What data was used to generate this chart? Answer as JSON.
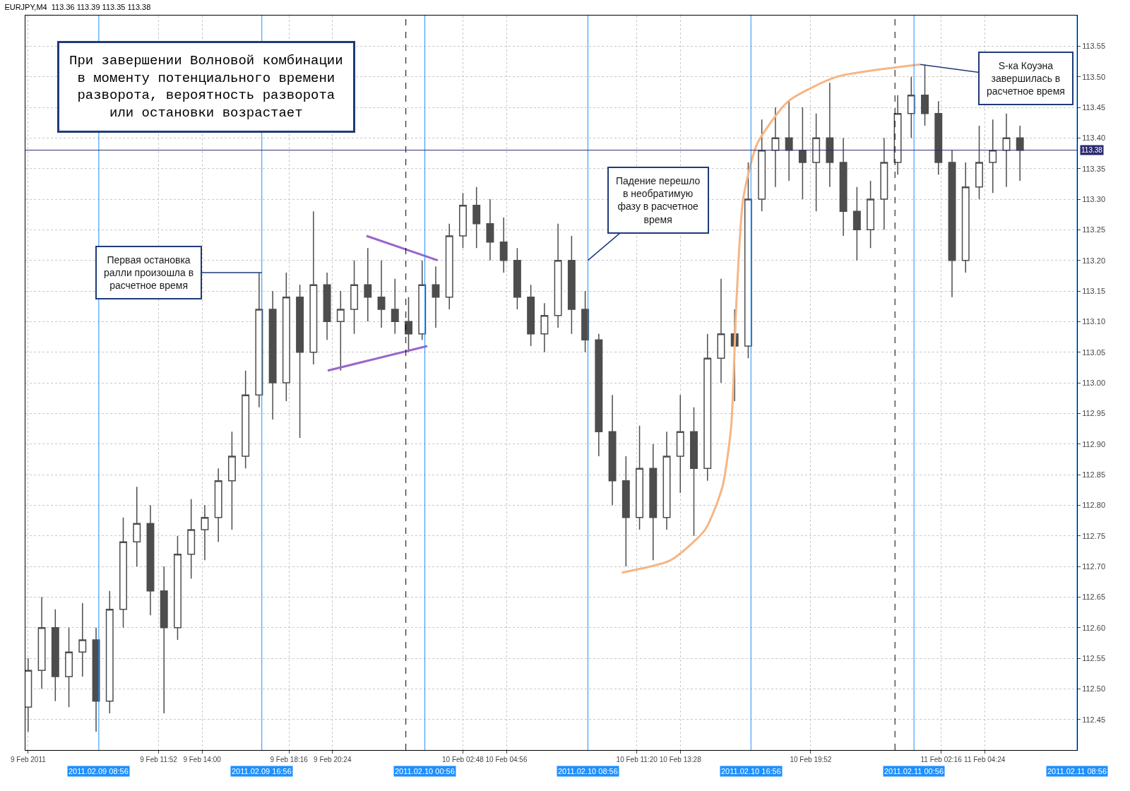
{
  "chart_data": {
    "type": "candlestick",
    "title": "EURJPY,M4  113.36 113.39 113.35 113.38",
    "annotations": [
      "При завершении Волновой комбинации\nв моменту потенциального времени\nразворота, вероятность разворота\nили остановки возрастает",
      {
        "text": "Первая остановка\nралли произошла в\nрасчетное время",
        "x": "2011-02-09T16:56",
        "y": 113.18
      },
      {
        "text": "Падение перешло\nв необратимую\nфазу в расчетное\nвремя",
        "x": "2011-02-10T08:56",
        "y": 113.2
      },
      {
        "text": "S-ка Коуэна\nзавершилась в\nрасчетное время",
        "x": "2011-02-11T01:14",
        "y": 113.52
      }
    ],
    "color": "#4d4d4d",
    "x": [
      "2011-02-09T05:28",
      "2011-02-09T06:08",
      "2011-02-09T06:48",
      "2011-02-09T07:28",
      "2011-02-09T08:08",
      "2011-02-09T08:48",
      "2011-02-09T09:28",
      "2011-02-09T10:08",
      "2011-02-09T10:48",
      "2011-02-09T11:28",
      "2011-02-09T12:08",
      "2011-02-09T12:48",
      "2011-02-09T13:28",
      "2011-02-09T14:08",
      "2011-02-09T14:48",
      "2011-02-09T15:28",
      "2011-02-09T16:08",
      "2011-02-09T16:48",
      "2011-02-09T17:28",
      "2011-02-09T18:08",
      "2011-02-09T18:48",
      "2011-02-09T19:28",
      "2011-02-09T20:08",
      "2011-02-09T20:48",
      "2011-02-09T21:28",
      "2011-02-09T22:08",
      "2011-02-09T22:48",
      "2011-02-09T23:28",
      "2011-02-10T00:08",
      "2011-02-10T00:48",
      "2011-02-10T01:28",
      "2011-02-10T02:08",
      "2011-02-10T02:48",
      "2011-02-10T03:28",
      "2011-02-10T04:08",
      "2011-02-10T04:48",
      "2011-02-10T05:28",
      "2011-02-10T06:08",
      "2011-02-10T06:48",
      "2011-02-10T07:28",
      "2011-02-10T08:08",
      "2011-02-10T08:48",
      "2011-02-10T09:28",
      "2011-02-10T10:08",
      "2011-02-10T10:48",
      "2011-02-10T11:28",
      "2011-02-10T12:08",
      "2011-02-10T12:48",
      "2011-02-10T13:28",
      "2011-02-10T14:08",
      "2011-02-10T14:48",
      "2011-02-10T15:28",
      "2011-02-10T16:08",
      "2011-02-10T16:48",
      "2011-02-10T17:28",
      "2011-02-10T18:08",
      "2011-02-10T18:48",
      "2011-02-10T19:28",
      "2011-02-10T20:08",
      "2011-02-10T20:48",
      "2011-02-10T21:28",
      "2011-02-10T22:08",
      "2011-02-10T22:48",
      "2011-02-10T23:28",
      "2011-02-11T00:08",
      "2011-02-11T00:48",
      "2011-02-11T01:28",
      "2011-02-11T02:08",
      "2011-02-11T02:48",
      "2011-02-11T03:28",
      "2011-02-11T04:08",
      "2011-02-11T04:48",
      "2011-02-11T05:28",
      "2011-02-11T06:08"
    ],
    "ohlc": [
      [
        112.47,
        112.55,
        112.43,
        112.53
      ],
      [
        112.53,
        112.65,
        112.5,
        112.6
      ],
      [
        112.6,
        112.63,
        112.48,
        112.52
      ],
      [
        112.52,
        112.6,
        112.47,
        112.56
      ],
      [
        112.56,
        112.64,
        112.52,
        112.58
      ],
      [
        112.58,
        112.6,
        112.43,
        112.48
      ],
      [
        112.48,
        112.66,
        112.46,
        112.63
      ],
      [
        112.63,
        112.78,
        112.6,
        112.74
      ],
      [
        112.74,
        112.83,
        112.7,
        112.77
      ],
      [
        112.77,
        112.8,
        112.62,
        112.66
      ],
      [
        112.66,
        112.7,
        112.46,
        112.6
      ],
      [
        112.6,
        112.75,
        112.58,
        112.72
      ],
      [
        112.72,
        112.81,
        112.68,
        112.76
      ],
      [
        112.76,
        112.8,
        112.71,
        112.78
      ],
      [
        112.78,
        112.86,
        112.74,
        112.84
      ],
      [
        112.84,
        112.92,
        112.76,
        112.88
      ],
      [
        112.88,
        113.02,
        112.86,
        112.98
      ],
      [
        112.98,
        113.18,
        112.96,
        113.12
      ],
      [
        113.12,
        113.15,
        112.94,
        113.0
      ],
      [
        113.0,
        113.18,
        112.97,
        113.14
      ],
      [
        113.14,
        113.16,
        112.91,
        113.05
      ],
      [
        113.05,
        113.28,
        113.03,
        113.16
      ],
      [
        113.16,
        113.18,
        113.07,
        113.1
      ],
      [
        113.1,
        113.15,
        113.02,
        113.12
      ],
      [
        113.12,
        113.2,
        113.08,
        113.16
      ],
      [
        113.16,
        113.22,
        113.1,
        113.14
      ],
      [
        113.14,
        113.2,
        113.09,
        113.12
      ],
      [
        113.12,
        113.17,
        113.08,
        113.1
      ],
      [
        113.1,
        113.14,
        113.05,
        113.08
      ],
      [
        113.08,
        113.2,
        113.07,
        113.16
      ],
      [
        113.16,
        113.19,
        113.09,
        113.14
      ],
      [
        113.14,
        113.26,
        113.12,
        113.24
      ],
      [
        113.24,
        113.31,
        113.22,
        113.29
      ],
      [
        113.29,
        113.32,
        113.22,
        113.26
      ],
      [
        113.26,
        113.3,
        113.2,
        113.23
      ],
      [
        113.23,
        113.27,
        113.18,
        113.2
      ],
      [
        113.2,
        113.22,
        113.12,
        113.14
      ],
      [
        113.14,
        113.16,
        113.06,
        113.08
      ],
      [
        113.08,
        113.13,
        113.05,
        113.11
      ],
      [
        113.11,
        113.26,
        113.09,
        113.2
      ],
      [
        113.2,
        113.24,
        113.08,
        113.12
      ],
      [
        113.12,
        113.15,
        113.05,
        113.07
      ],
      [
        113.07,
        113.08,
        112.88,
        112.92
      ],
      [
        112.92,
        112.98,
        112.8,
        112.84
      ],
      [
        112.84,
        112.88,
        112.7,
        112.78
      ],
      [
        112.78,
        112.93,
        112.76,
        112.86
      ],
      [
        112.86,
        112.9,
        112.71,
        112.78
      ],
      [
        112.78,
        112.92,
        112.76,
        112.88
      ],
      [
        112.88,
        112.98,
        112.82,
        112.92
      ],
      [
        112.92,
        112.96,
        112.75,
        112.86
      ],
      [
        112.86,
        113.08,
        112.84,
        113.04
      ],
      [
        113.04,
        113.17,
        113.0,
        113.08
      ],
      [
        113.08,
        113.12,
        112.97,
        113.06
      ],
      [
        113.06,
        113.36,
        113.04,
        113.3
      ],
      [
        113.3,
        113.43,
        113.28,
        113.38
      ],
      [
        113.38,
        113.45,
        113.32,
        113.4
      ],
      [
        113.4,
        113.46,
        113.33,
        113.38
      ],
      [
        113.38,
        113.45,
        113.3,
        113.36
      ],
      [
        113.36,
        113.44,
        113.28,
        113.4
      ],
      [
        113.4,
        113.49,
        113.32,
        113.36
      ],
      [
        113.36,
        113.4,
        113.24,
        113.28
      ],
      [
        113.28,
        113.32,
        113.2,
        113.25
      ],
      [
        113.25,
        113.33,
        113.22,
        113.3
      ],
      [
        113.3,
        113.4,
        113.25,
        113.36
      ],
      [
        113.36,
        113.47,
        113.34,
        113.44
      ],
      [
        113.44,
        113.5,
        113.4,
        113.47
      ],
      [
        113.47,
        113.52,
        113.42,
        113.44
      ],
      [
        113.44,
        113.46,
        113.34,
        113.36
      ],
      [
        113.36,
        113.38,
        113.14,
        113.2
      ],
      [
        113.2,
        113.36,
        113.18,
        113.32
      ],
      [
        113.32,
        113.42,
        113.3,
        113.36
      ],
      [
        113.36,
        113.43,
        113.31,
        113.38
      ],
      [
        113.38,
        113.44,
        113.32,
        113.4
      ],
      [
        113.4,
        113.42,
        113.33,
        113.38
      ]
    ],
    "series": [
      {
        "type": "line",
        "color": "#9966cc",
        "x": [
          "2011-02-09T22:04",
          "2011-02-10T01:34"
        ],
        "values": [
          113.24,
          113.2
        ]
      },
      {
        "type": "line",
        "color": "#9966cc",
        "x": [
          "2011-02-09T20:10",
          "2011-02-10T01:03"
        ],
        "values": [
          113.02,
          113.06
        ]
      },
      {
        "type": "line",
        "color": "#f7b583",
        "x": [
          "2011-02-10T10:36",
          "2011-02-10T12:59",
          "2011-02-10T14:41",
          "2011-02-10T15:32",
          "2011-02-10T15:58",
          "2011-02-10T16:13",
          "2011-02-10T16:33",
          "2011-02-10T17:14",
          "2011-02-10T18:46",
          "2011-02-10T21:09",
          "2011-02-11T01:14"
        ],
        "values": [
          112.69,
          112.71,
          112.76,
          112.83,
          112.93,
          113.13,
          113.3,
          113.39,
          113.46,
          113.5,
          113.52
        ]
      }
    ],
    "xlim": [
      "2011-02-09T05:20",
      "2011-02-11T08:56"
    ],
    "xticks": [
      {
        "value": "2011-02-09T05:28",
        "label": "9 Feb 2011"
      },
      {
        "value": "2011-02-09T11:52",
        "label": "9 Feb 11:52"
      },
      {
        "value": "2011-02-09T14:00",
        "label": "9 Feb 14:00"
      },
      {
        "value": "2011-02-09T18:16",
        "label": "9 Feb 18:16"
      },
      {
        "value": "2011-02-09T20:24",
        "label": "9 Feb 20:24"
      },
      {
        "value": "2011-02-10T02:48",
        "label": "10 Feb 02:48"
      },
      {
        "value": "2011-02-10T04:56",
        "label": "10 Feb 04:56"
      },
      {
        "value": "2011-02-10T11:20",
        "label": "10 Feb 11:20"
      },
      {
        "value": "2011-02-10T13:28",
        "label": "10 Feb 13:28"
      },
      {
        "value": "2011-02-10T19:52",
        "label": "10 Feb 19:52"
      },
      {
        "value": "2011-02-11T02:16",
        "label": "11 Feb 02:16"
      },
      {
        "value": "2011-02-11T04:24",
        "label": "11 Feb 04:24"
      }
    ],
    "ylim": [
      112.4,
      113.6
    ],
    "yticks": [
      112.45,
      {
        "value": 112.5,
        "label": "112.50"
      },
      112.55,
      {
        "value": 112.6,
        "label": "112.60"
      },
      112.65,
      {
        "value": 112.7,
        "label": "112.70"
      },
      112.75,
      {
        "value": 112.8,
        "label": "112.80"
      },
      112.85,
      {
        "value": 112.9,
        "label": "112.90"
      },
      112.95,
      {
        "value": 113,
        "label": "113.00"
      },
      113.05,
      {
        "value": 113.1,
        "label": "113.10"
      },
      113.15,
      {
        "value": 113.2,
        "label": "113.20"
      },
      113.25,
      {
        "value": 113.3,
        "label": "113.30"
      },
      113.35,
      {
        "value": 113.4,
        "label": "113.40"
      },
      113.45,
      {
        "value": 113.5,
        "label": "113.50"
      },
      113.55
    ],
    "ref_lines": [
      {
        "axis": "x",
        "value": "2011-02-09T08:56",
        "label": "2011.02.09 08:56",
        "color": "#1e90ff"
      },
      {
        "axis": "x",
        "value": "2011-02-09T16:56",
        "label": "2011.02.09 16:56",
        "color": "#1e90ff"
      },
      {
        "axis": "x",
        "value": "2011-02-10T00:56",
        "label": "2011.02.10 00:56",
        "color": "#1e90ff"
      },
      {
        "axis": "x",
        "value": "2011-02-10T08:56",
        "label": "2011.02.10 08:56",
        "color": "#1e90ff"
      },
      {
        "axis": "x",
        "value": "2011-02-10T16:56",
        "label": "2011.02.10 16:56",
        "color": "#1e90ff"
      },
      {
        "axis": "x",
        "value": "2011-02-11T00:56",
        "label": "2011.02.11 00:56",
        "color": "#1e90ff"
      },
      {
        "axis": "x",
        "value": "2011-02-11T08:56",
        "label": "2011.02.11 08:56",
        "color": "#1e90ff"
      },
      {
        "axis": "x",
        "value": "2011-02-10T00:00",
        "color": "#000000",
        "line_style": "dashed"
      },
      {
        "axis": "x",
        "value": "2011-02-11T00:00",
        "color": "#000000",
        "line_style": "dashed"
      },
      {
        "axis": "y",
        "value": 113.38,
        "label": "113.38",
        "color": "#2a2a6e"
      }
    ],
    "grid": true
  }
}
